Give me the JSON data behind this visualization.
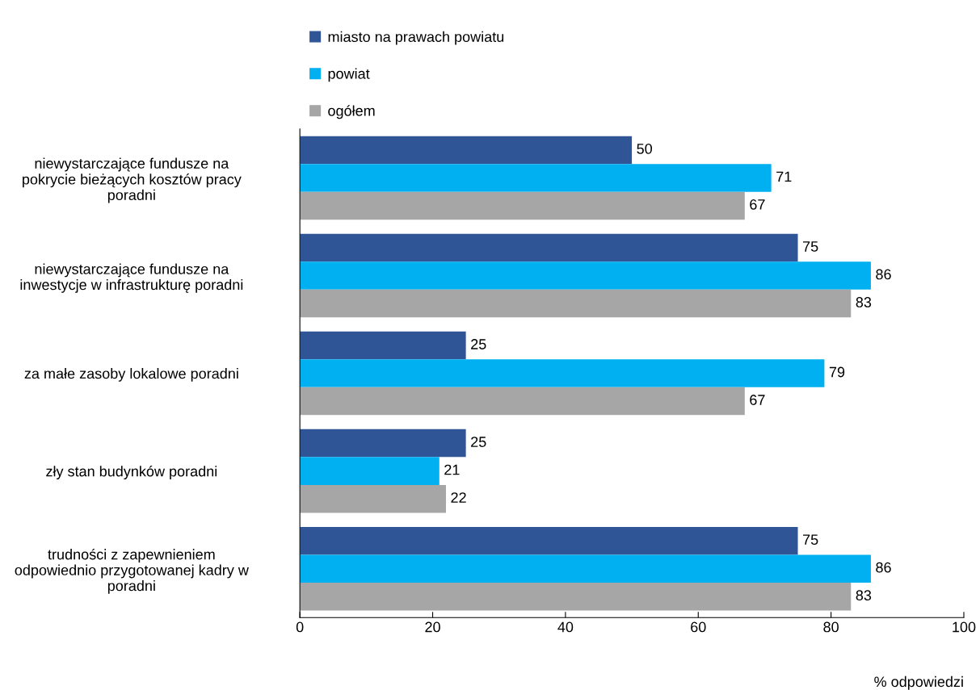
{
  "chart_data": {
    "type": "bar",
    "orientation": "horizontal",
    "xlabel": "% odpowiedzi",
    "categories": [
      "niewystarczające fundusze na\npokrycie bieżących kosztów pracy\nporadni",
      "niewystarczające fundusze na\ninwestycje w infrastrukturę poradni",
      "za małe zasoby lokalowe poradni",
      "zły stan budynków poradni",
      "trudności z zapewnieniem\nodpowiednio przygotowanej kadry w\nporadni"
    ],
    "series": [
      {
        "name": "miasto na prawach powiatu",
        "color": "#2f5597",
        "values": [
          50,
          75,
          25,
          25,
          75
        ]
      },
      {
        "name": "powiat",
        "color": "#00b0f0",
        "values": [
          71,
          86,
          79,
          21,
          86
        ]
      },
      {
        "name": "ogółem",
        "color": "#a6a6a6",
        "values": [
          67,
          83,
          67,
          22,
          83
        ]
      }
    ],
    "xlim": [
      0,
      100
    ],
    "xticks": [
      0,
      20,
      40,
      60,
      80,
      100
    ],
    "data_labels": true,
    "legend": "top",
    "grid": false
  }
}
